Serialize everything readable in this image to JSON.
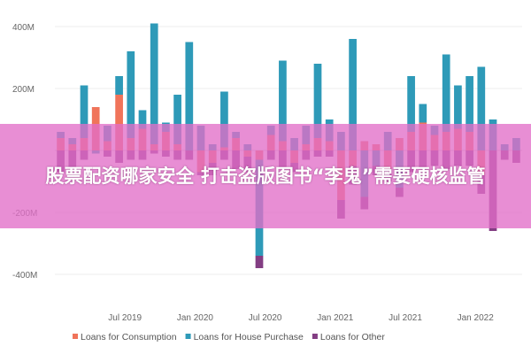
{
  "chart_data": {
    "type": "bar",
    "stacked": true,
    "title": "",
    "xlabel": "",
    "ylabel": "",
    "ylim": [
      -420,
      430
    ],
    "y_ticks": [
      -400,
      -200,
      200,
      400
    ],
    "y_tick_labels": [
      "-400M",
      "-200M",
      "200M",
      "400M"
    ],
    "x_tick_labels": [
      "Jul 2019",
      "Jan 2020",
      "Jul 2020",
      "Jan 2021",
      "Jul 2021",
      "Jan 2022"
    ],
    "x_tick_positions": [
      6,
      12,
      18,
      24,
      30,
      36
    ],
    "grid": true,
    "legend": "bottom",
    "categories": [
      "Jan 2019",
      "Feb 2019",
      "Mar 2019",
      "Apr 2019",
      "May 2019",
      "Jun 2019",
      "Jul 2019",
      "Aug 2019",
      "Sep 2019",
      "Oct 2019",
      "Nov 2019",
      "Dec 2019",
      "Jan 2020",
      "Feb 2020",
      "Mar 2020",
      "Apr 2020",
      "May 2020",
      "Jun 2020",
      "Jul 2020",
      "Aug 2020",
      "Sep 2020",
      "Oct 2020",
      "Nov 2020",
      "Dec 2020",
      "Jan 2021",
      "Feb 2021",
      "Mar 2021",
      "Apr 2021",
      "May 2021",
      "Jun 2021",
      "Jul 2021",
      "Aug 2021",
      "Sep 2021",
      "Oct 2021",
      "Nov 2021",
      "Dec 2021",
      "Jan 2022",
      "Feb 2022",
      "Mar 2022",
      "Apr 2022"
    ],
    "series": [
      {
        "name": "Loans for Consumption",
        "color": "#F0745A",
        "values": [
          40,
          20,
          40,
          140,
          30,
          180,
          40,
          70,
          20,
          60,
          20,
          0,
          -70,
          -40,
          10,
          40,
          -20,
          -30,
          50,
          30,
          -40,
          20,
          40,
          30,
          -160,
          -50,
          30,
          20,
          -60,
          40,
          60,
          90,
          50,
          60,
          70,
          60,
          -80,
          0,
          0,
          0
        ]
      },
      {
        "name": "Loans for House Purchase",
        "color": "#2E9AB8",
        "values": [
          20,
          20,
          170,
          -10,
          50,
          60,
          280,
          60,
          390,
          30,
          160,
          350,
          80,
          20,
          180,
          20,
          20,
          -310,
          30,
          260,
          40,
          60,
          240,
          70,
          60,
          360,
          -150,
          -50,
          60,
          -120,
          180,
          60,
          30,
          250,
          140,
          180,
          270,
          100,
          20,
          40
        ]
      },
      {
        "name": "Loans for Other",
        "color": "#833E83",
        "values": [
          -70,
          -60,
          -30,
          0,
          -20,
          -40,
          -30,
          -30,
          -10,
          -20,
          -30,
          -30,
          -10,
          -40,
          -30,
          -60,
          -50,
          -40,
          -30,
          -60,
          -30,
          -30,
          -20,
          -20,
          -60,
          -60,
          -40,
          -30,
          -40,
          -30,
          -70,
          -60,
          -50,
          -60,
          -50,
          -50,
          -60,
          -260,
          -30,
          -40
        ]
      }
    ]
  },
  "overlay": {
    "text": "股票配资哪家安全 打击盗版图书“李鬼”需要硬核监管"
  }
}
